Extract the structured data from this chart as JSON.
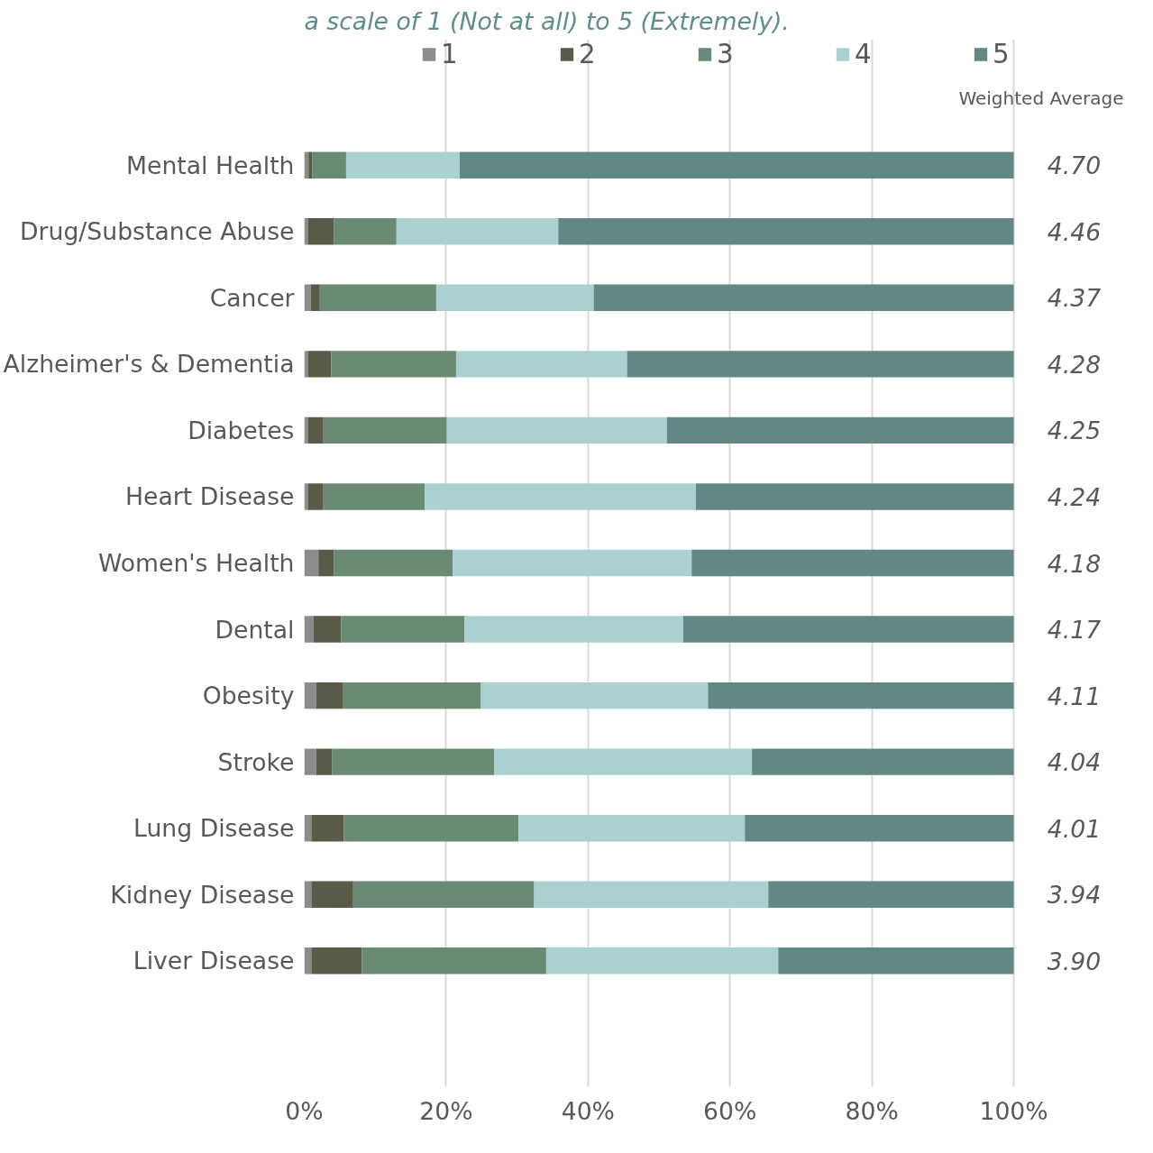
{
  "chart_data": {
    "type": "bar",
    "orientation": "horizontal",
    "stacked": true,
    "subtitle": "a scale of 1 (Not at all) to 5 (Extremely).",
    "categories": [
      "Mental Health",
      "Drug/Substance Abuse",
      "Cancer",
      "Alzheimer's & Dementia",
      "Diabetes",
      "Heart Disease",
      "Women's Health",
      "Dental",
      "Obesity",
      "Stroke",
      "Lung Disease",
      "Kidney Disease",
      "Liver Disease"
    ],
    "series": [
      {
        "name": "1",
        "color": "#8c8c8c",
        "values": [
          0.6,
          0.5,
          0.9,
          0.5,
          0.5,
          0.5,
          2.0,
          1.3,
          1.7,
          1.7,
          1.0,
          1.0,
          1.0
        ]
      },
      {
        "name": "2",
        "color": "#5a5a48",
        "values": [
          0.5,
          3.7,
          1.3,
          3.3,
          2.2,
          2.2,
          2.2,
          3.9,
          3.8,
          2.2,
          4.6,
          5.9,
          7.1
        ]
      },
      {
        "name": "3",
        "color": "#6b8a74",
        "values": [
          4.8,
          8.8,
          16.4,
          17.6,
          17.4,
          14.3,
          16.7,
          17.4,
          19.4,
          22.9,
          24.6,
          25.5,
          26.0
        ]
      },
      {
        "name": "4",
        "color": "#abd0d2",
        "values": [
          16.0,
          22.8,
          22.2,
          24.1,
          31.0,
          38.2,
          33.7,
          30.8,
          32.0,
          36.3,
          31.9,
          33.0,
          32.7
        ]
      },
      {
        "name": "5",
        "color": "#628886",
        "values": [
          78.1,
          64.2,
          59.2,
          54.5,
          48.9,
          44.8,
          45.4,
          46.6,
          43.1,
          36.9,
          37.9,
          34.6,
          33.2
        ]
      }
    ],
    "xlim": [
      0,
      100
    ],
    "xticks": [
      {
        "value": 0,
        "label": "0%"
      },
      {
        "value": 20,
        "label": "20%"
      },
      {
        "value": 40,
        "label": "40%"
      },
      {
        "value": 60,
        "label": "60%"
      },
      {
        "value": 80,
        "label": "80%"
      },
      {
        "value": 100,
        "label": "100%"
      }
    ],
    "grid": "x",
    "legend": "top",
    "annotations": [
      "Weighted Average",
      "4.70",
      "4.46",
      "4.37",
      "4.28",
      "4.25",
      "4.24",
      "4.18",
      "4.17",
      "4.11",
      "4.04",
      "4.01",
      "3.94",
      "3.90"
    ]
  }
}
